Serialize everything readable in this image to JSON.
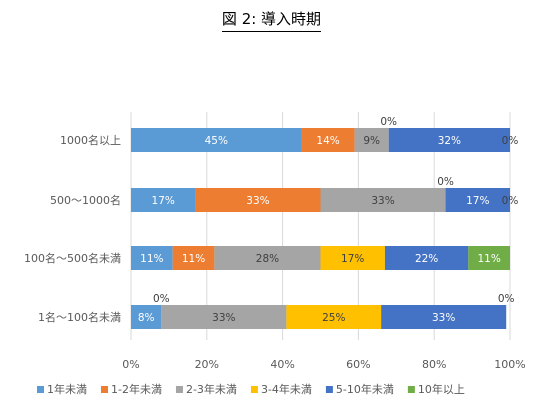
{
  "chart_data": {
    "type": "bar",
    "orientation": "horizontal",
    "stacked": "percent",
    "title": "図 2:  導入時期",
    "categories": [
      "1000名以上",
      "500〜1000名",
      "100名〜500名未満",
      "1名〜100名未満"
    ],
    "xlim": [
      0,
      100
    ],
    "x_ticks": [
      "0%",
      "20%",
      "40%",
      "60%",
      "80%",
      "100%"
    ],
    "grid": true,
    "legend_position": "bottom",
    "series": [
      {
        "name": "1年未満",
        "color": "#5B9BD5",
        "values": [
          45,
          17,
          11,
          8
        ],
        "labels": [
          "45%",
          "17%",
          "11%",
          "8%"
        ]
      },
      {
        "name": "1-2年未満",
        "color": "#ED7D31",
        "values": [
          14,
          33,
          11,
          0
        ],
        "labels": [
          "14%",
          "33%",
          "11%",
          "0%"
        ]
      },
      {
        "name": "2-3年未満",
        "color": "#A5A5A5",
        "values": [
          9,
          33,
          28,
          33
        ],
        "labels": [
          "9%",
          "33%",
          "28%",
          "33%"
        ]
      },
      {
        "name": "3-4年未満",
        "color": "#FFC000",
        "values": [
          0,
          0,
          17,
          25
        ],
        "labels": [
          "0%",
          "0%",
          "17%",
          "25%"
        ]
      },
      {
        "name": "5-10年未満",
        "color": "#4472C4",
        "values": [
          32,
          17,
          22,
          33
        ],
        "labels": [
          "32%",
          "17%",
          "22%",
          "33%"
        ]
      },
      {
        "name": "10年以上",
        "color": "#70AD47",
        "values": [
          0,
          0,
          11,
          0
        ],
        "labels": [
          "0%",
          "0%",
          "11%",
          "0%"
        ]
      }
    ]
  }
}
